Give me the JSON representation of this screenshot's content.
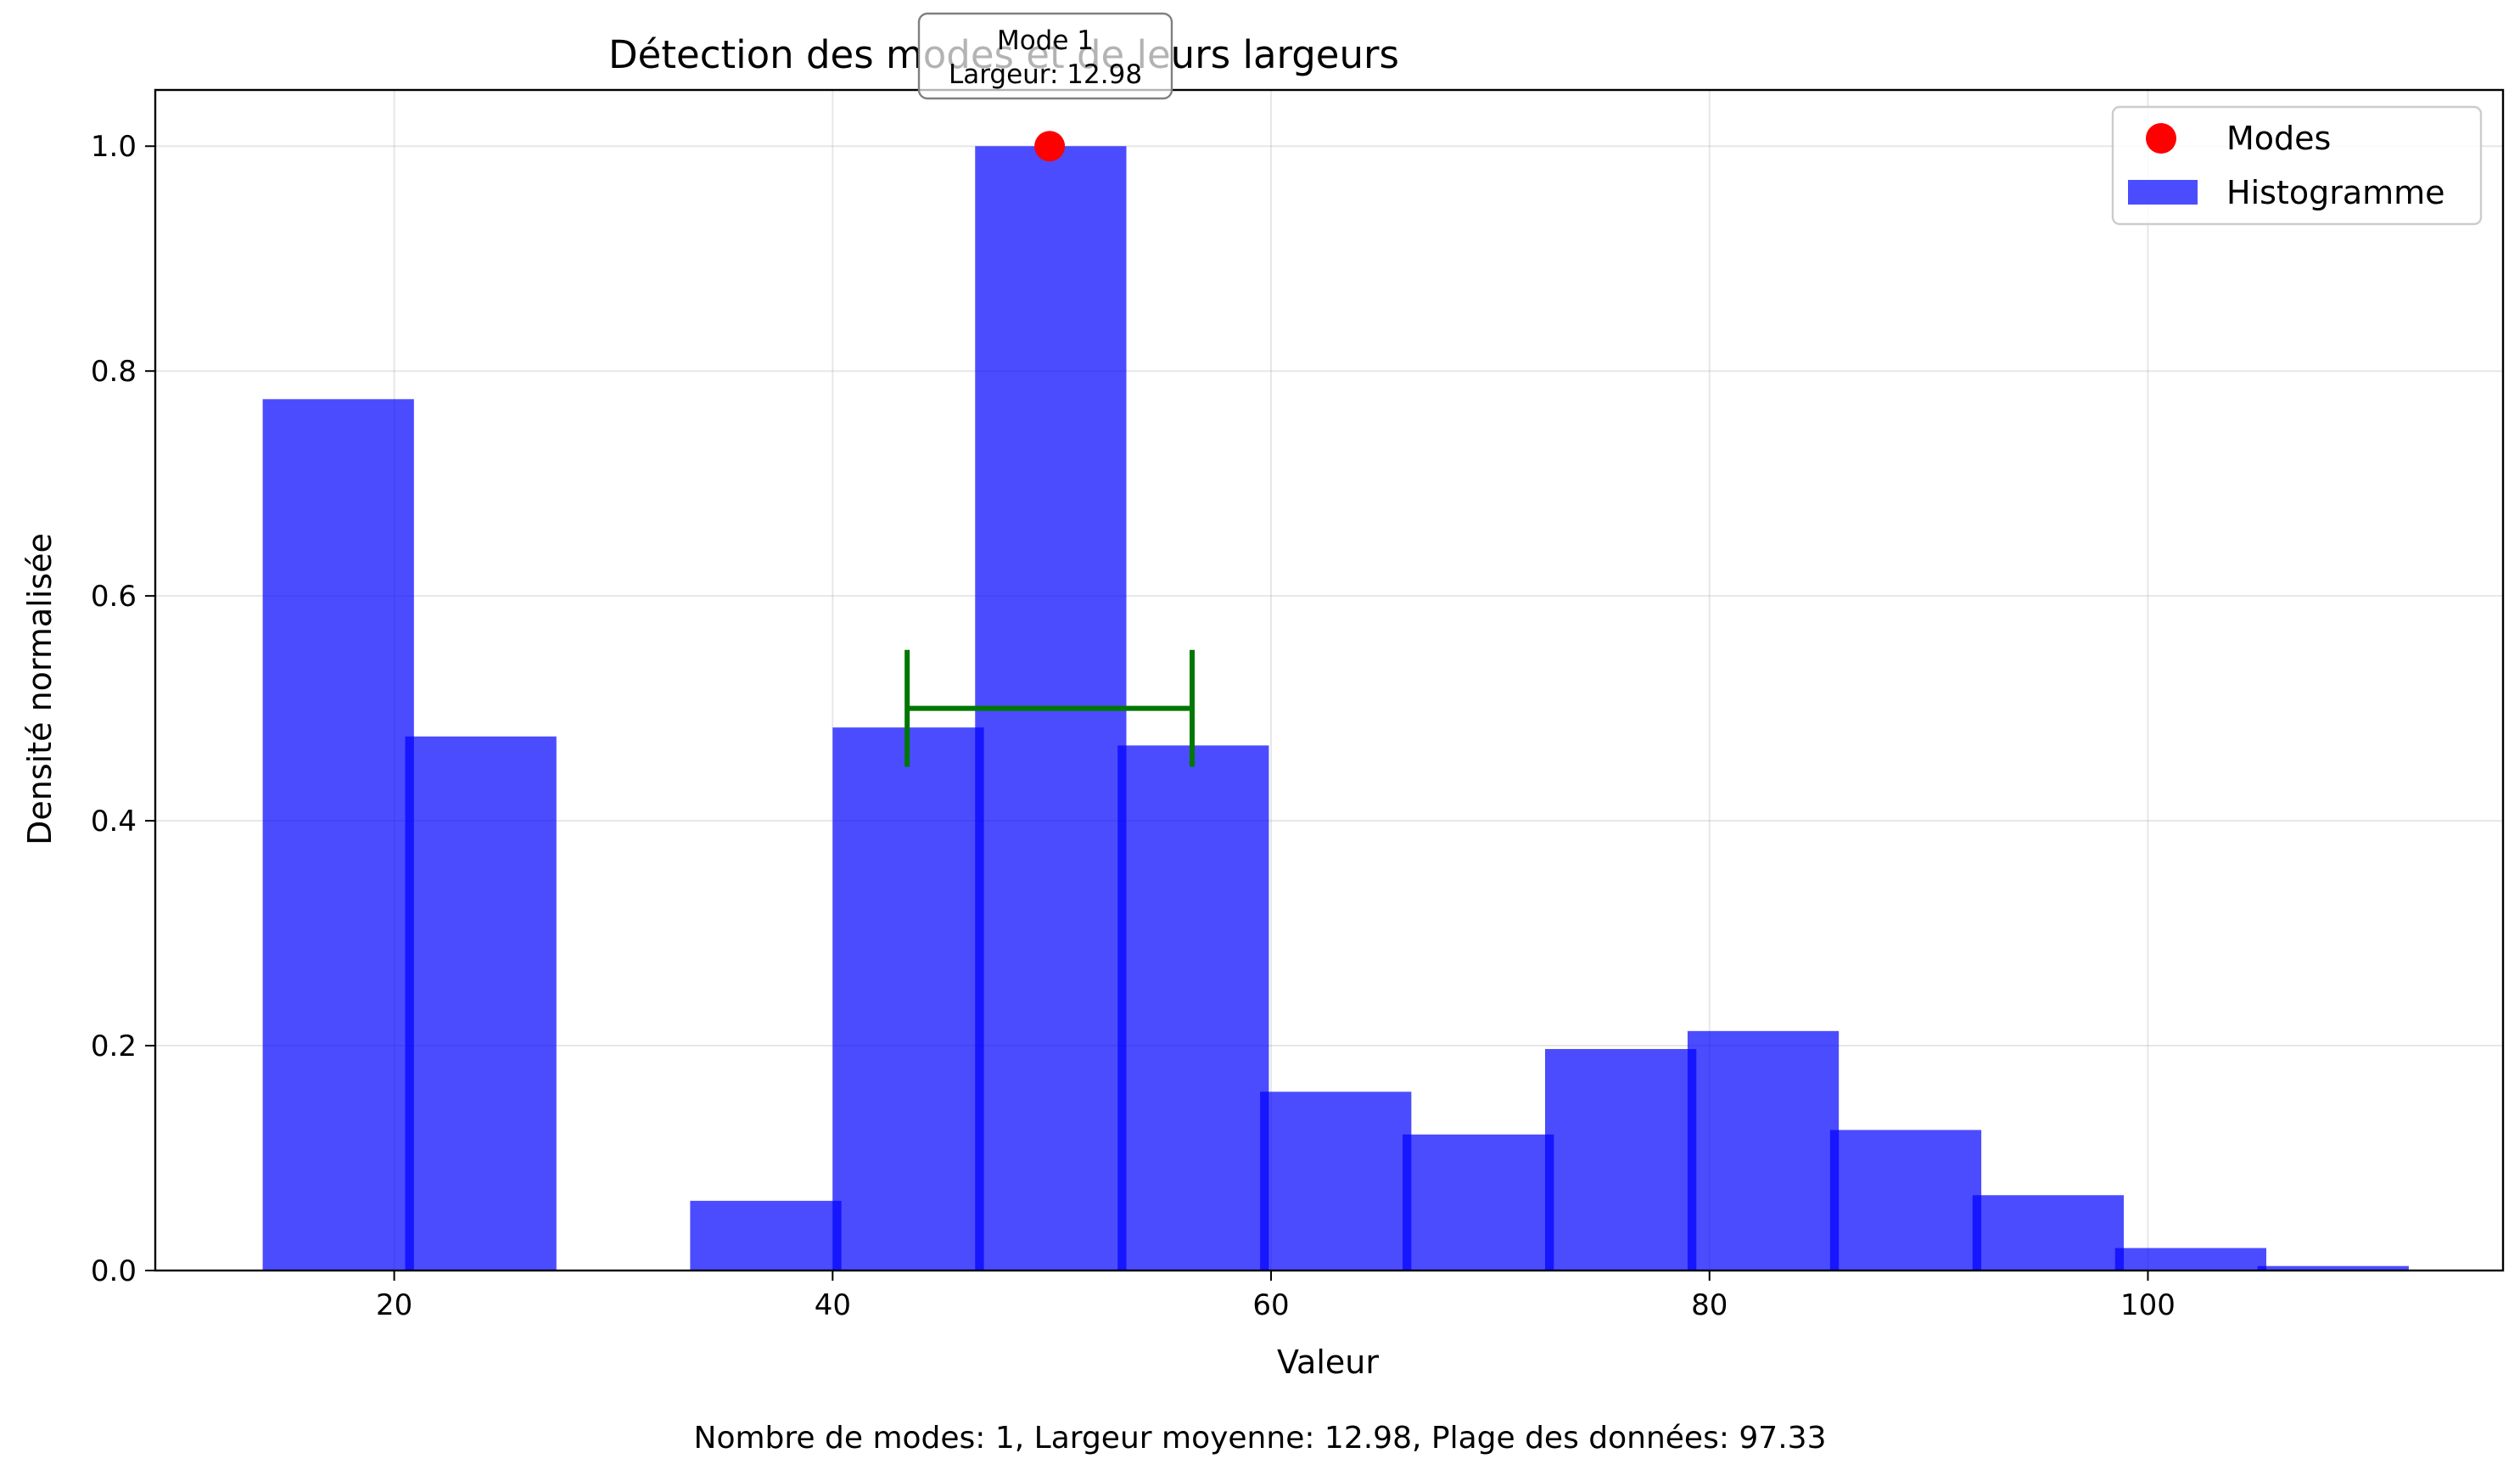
{
  "chart_data": {
    "type": "bar",
    "title": "Détection des modes et de leurs largeurs",
    "xlabel": "Valeur",
    "ylabel": "Densité normalisée",
    "xlim": [
      9.1,
      116.2
    ],
    "ylim": [
      0,
      1.05
    ],
    "x_ticks": [
      20,
      40,
      60,
      80,
      100
    ],
    "y_ticks": [
      0.0,
      0.2,
      0.4,
      0.6,
      0.8,
      1.0
    ],
    "x_tick_labels": [
      "20",
      "40",
      "60",
      "80",
      "100"
    ],
    "y_tick_labels": [
      "0.0",
      "0.2",
      "0.4",
      "0.6",
      "0.8",
      "1.0"
    ],
    "grid": true,
    "legend_position": "top-right",
    "series": [
      {
        "name": "Histogramme",
        "color": "#0000ff",
        "bars": [
          {
            "left": 14.0,
            "right": 20.9,
            "value": 0.775
          },
          {
            "left": 20.5,
            "right": 27.4,
            "value": 0.475
          },
          {
            "left": 33.5,
            "right": 40.4,
            "value": 0.062
          },
          {
            "left": 40.0,
            "right": 46.9,
            "value": 0.483
          },
          {
            "left": 46.5,
            "right": 53.4,
            "value": 1.0
          },
          {
            "left": 53.0,
            "right": 59.9,
            "value": 0.467
          },
          {
            "left": 59.5,
            "right": 66.4,
            "value": 0.159
          },
          {
            "left": 66.0,
            "right": 72.9,
            "value": 0.121
          },
          {
            "left": 72.5,
            "right": 79.4,
            "value": 0.197
          },
          {
            "left": 79.0,
            "right": 85.9,
            "value": 0.213
          },
          {
            "left": 85.5,
            "right": 92.4,
            "value": 0.125
          },
          {
            "left": 92.0,
            "right": 98.9,
            "value": 0.067
          },
          {
            "left": 98.5,
            "right": 105.4,
            "value": 0.02
          },
          {
            "left": 105.0,
            "right": 111.9,
            "value": 0.004
          }
        ]
      },
      {
        "name": "Modes",
        "color": "#ff0000",
        "points": [
          {
            "x": 49.9,
            "y": 1.0
          }
        ]
      }
    ],
    "width_markers": [
      {
        "x_start": 43.4,
        "x_end": 56.4,
        "y": 0.5,
        "cap_half": 0.052,
        "color": "#007700"
      }
    ],
    "annotations": [
      {
        "line1": "Mode 1",
        "line2": "Largeur: 12.98",
        "x": 49.9
      }
    ],
    "footer": "Nombre de modes: 1, Largeur moyenne: 12.98, Plage des données: 97.33"
  }
}
